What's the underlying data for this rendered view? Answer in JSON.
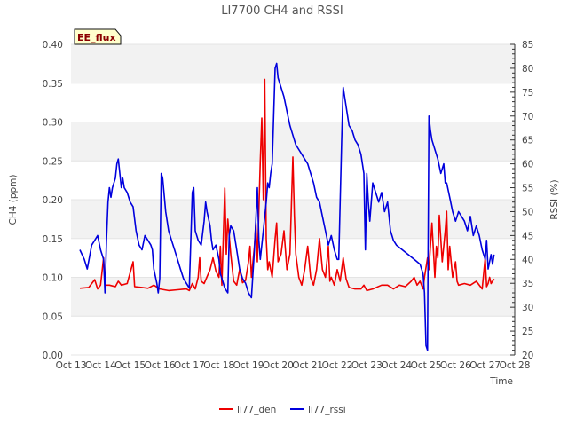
{
  "chart_data": {
    "type": "line",
    "title": "LI7700 CH4 and RSSI",
    "badge": "EE_flux",
    "xlabel": "Time",
    "ylabel_left": "CH4 (ppm)",
    "ylabel_right": "RSSI (%)",
    "x_range": [
      13,
      28
    ],
    "y_left_range": [
      0.0,
      0.4
    ],
    "y_right_range": [
      20,
      85
    ],
    "x_ticks": [
      "Oct 13",
      "Oct 14",
      "Oct 15",
      "Oct 16",
      "Oct 17",
      "Oct 18",
      "Oct 19",
      "Oct 20",
      "Oct 21",
      "Oct 22",
      "Oct 23",
      "Oct 24",
      "Oct 25",
      "Oct 26",
      "Oct 27",
      "Oct 28"
    ],
    "y_left_ticks": [
      "0.00",
      "0.05",
      "0.10",
      "0.15",
      "0.20",
      "0.25",
      "0.30",
      "0.35",
      "0.40"
    ],
    "y_right_ticks": [
      "20",
      "25",
      "30",
      "35",
      "40",
      "45",
      "50",
      "55",
      "60",
      "65",
      "70",
      "75",
      "80",
      "85"
    ],
    "series": [
      {
        "name": "li77_den",
        "axis": "left",
        "color": "#ee0000",
        "points": [
          [
            13.3,
            0.086
          ],
          [
            13.6,
            0.087
          ],
          [
            13.8,
            0.097
          ],
          [
            13.9,
            0.085
          ],
          [
            14.0,
            0.09
          ],
          [
            14.1,
            0.125
          ],
          [
            14.15,
            0.09
          ],
          [
            14.3,
            0.09
          ],
          [
            14.5,
            0.088
          ],
          [
            14.6,
            0.095
          ],
          [
            14.7,
            0.09
          ],
          [
            14.9,
            0.092
          ],
          [
            15.1,
            0.12
          ],
          [
            15.15,
            0.088
          ],
          [
            15.4,
            0.087
          ],
          [
            15.6,
            0.086
          ],
          [
            15.8,
            0.09
          ],
          [
            16.0,
            0.085
          ],
          [
            16.3,
            0.083
          ],
          [
            16.6,
            0.084
          ],
          [
            16.9,
            0.085
          ],
          [
            17.0,
            0.083
          ],
          [
            17.1,
            0.092
          ],
          [
            17.2,
            0.085
          ],
          [
            17.3,
            0.1
          ],
          [
            17.35,
            0.125
          ],
          [
            17.4,
            0.095
          ],
          [
            17.5,
            0.092
          ],
          [
            17.7,
            0.11
          ],
          [
            17.8,
            0.125
          ],
          [
            17.9,
            0.108
          ],
          [
            18.0,
            0.1
          ],
          [
            18.05,
            0.14
          ],
          [
            18.1,
            0.09
          ],
          [
            18.2,
            0.215
          ],
          [
            18.25,
            0.13
          ],
          [
            18.3,
            0.175
          ],
          [
            18.4,
            0.13
          ],
          [
            18.5,
            0.095
          ],
          [
            18.6,
            0.09
          ],
          [
            18.7,
            0.11
          ],
          [
            18.8,
            0.093
          ],
          [
            18.9,
            0.096
          ],
          [
            19.0,
            0.12
          ],
          [
            19.05,
            0.14
          ],
          [
            19.1,
            0.1
          ],
          [
            19.2,
            0.14
          ],
          [
            19.25,
            0.17
          ],
          [
            19.3,
            0.12
          ],
          [
            19.4,
            0.25
          ],
          [
            19.45,
            0.305
          ],
          [
            19.5,
            0.2
          ],
          [
            19.55,
            0.355
          ],
          [
            19.6,
            0.15
          ],
          [
            19.65,
            0.11
          ],
          [
            19.7,
            0.12
          ],
          [
            19.8,
            0.1
          ],
          [
            19.9,
            0.15
          ],
          [
            19.95,
            0.17
          ],
          [
            20.0,
            0.12
          ],
          [
            20.1,
            0.13
          ],
          [
            20.2,
            0.16
          ],
          [
            20.3,
            0.11
          ],
          [
            20.4,
            0.13
          ],
          [
            20.5,
            0.255
          ],
          [
            20.55,
            0.18
          ],
          [
            20.6,
            0.13
          ],
          [
            20.7,
            0.1
          ],
          [
            20.8,
            0.09
          ],
          [
            20.9,
            0.11
          ],
          [
            21.0,
            0.14
          ],
          [
            21.1,
            0.1
          ],
          [
            21.2,
            0.09
          ],
          [
            21.3,
            0.11
          ],
          [
            21.4,
            0.15
          ],
          [
            21.5,
            0.11
          ],
          [
            21.6,
            0.1
          ],
          [
            21.7,
            0.14
          ],
          [
            21.75,
            0.095
          ],
          [
            21.8,
            0.1
          ],
          [
            21.9,
            0.09
          ],
          [
            22.0,
            0.11
          ],
          [
            22.1,
            0.095
          ],
          [
            22.2,
            0.125
          ],
          [
            22.3,
            0.098
          ],
          [
            22.4,
            0.087
          ],
          [
            22.6,
            0.085
          ],
          [
            22.8,
            0.085
          ],
          [
            22.9,
            0.09
          ],
          [
            23.0,
            0.083
          ],
          [
            23.2,
            0.085
          ],
          [
            23.5,
            0.09
          ],
          [
            23.7,
            0.09
          ],
          [
            23.9,
            0.085
          ],
          [
            24.1,
            0.09
          ],
          [
            24.3,
            0.088
          ],
          [
            24.5,
            0.095
          ],
          [
            24.6,
            0.1
          ],
          [
            24.7,
            0.09
          ],
          [
            24.8,
            0.095
          ],
          [
            24.9,
            0.085
          ],
          [
            24.95,
            0.1
          ],
          [
            25.05,
            0.125
          ],
          [
            25.1,
            0.11
          ],
          [
            25.2,
            0.17
          ],
          [
            25.3,
            0.1
          ],
          [
            25.35,
            0.14
          ],
          [
            25.4,
            0.125
          ],
          [
            25.45,
            0.18
          ],
          [
            25.55,
            0.12
          ],
          [
            25.65,
            0.16
          ],
          [
            25.7,
            0.185
          ],
          [
            25.75,
            0.11
          ],
          [
            25.8,
            0.14
          ],
          [
            25.9,
            0.1
          ],
          [
            26.0,
            0.12
          ],
          [
            26.05,
            0.095
          ],
          [
            26.1,
            0.09
          ],
          [
            26.3,
            0.092
          ],
          [
            26.5,
            0.09
          ],
          [
            26.7,
            0.095
          ],
          [
            26.9,
            0.085
          ],
          [
            27.0,
            0.125
          ],
          [
            27.05,
            0.088
          ],
          [
            27.1,
            0.092
          ],
          [
            27.15,
            0.1
          ],
          [
            27.2,
            0.092
          ],
          [
            27.3,
            0.098
          ]
        ]
      },
      {
        "name": "li77_rssi",
        "axis": "right",
        "color": "#0000dd",
        "points": [
          [
            13.3,
            42
          ],
          [
            13.45,
            40
          ],
          [
            13.55,
            38
          ],
          [
            13.7,
            43
          ],
          [
            13.8,
            44
          ],
          [
            13.9,
            45
          ],
          [
            14.0,
            42
          ],
          [
            14.1,
            40
          ],
          [
            14.15,
            33
          ],
          [
            14.2,
            44
          ],
          [
            14.25,
            52
          ],
          [
            14.3,
            55
          ],
          [
            14.35,
            53
          ],
          [
            14.4,
            55
          ],
          [
            14.5,
            57
          ],
          [
            14.55,
            60
          ],
          [
            14.6,
            61
          ],
          [
            14.7,
            55
          ],
          [
            14.75,
            57
          ],
          [
            14.8,
            55
          ],
          [
            14.9,
            54
          ],
          [
            15.0,
            52
          ],
          [
            15.1,
            51
          ],
          [
            15.2,
            46
          ],
          [
            15.3,
            43
          ],
          [
            15.4,
            42
          ],
          [
            15.5,
            45
          ],
          [
            15.6,
            44
          ],
          [
            15.7,
            43
          ],
          [
            15.75,
            42
          ],
          [
            15.8,
            38
          ],
          [
            15.9,
            35
          ],
          [
            15.95,
            33
          ],
          [
            16.0,
            36
          ],
          [
            16.05,
            58
          ],
          [
            16.1,
            57
          ],
          [
            16.2,
            50
          ],
          [
            16.3,
            46
          ],
          [
            16.4,
            44
          ],
          [
            16.5,
            42
          ],
          [
            16.6,
            40
          ],
          [
            16.7,
            38
          ],
          [
            16.8,
            36
          ],
          [
            16.9,
            35
          ],
          [
            17.0,
            34
          ],
          [
            17.05,
            44
          ],
          [
            17.1,
            54
          ],
          [
            17.15,
            55
          ],
          [
            17.2,
            46
          ],
          [
            17.3,
            44
          ],
          [
            17.4,
            43
          ],
          [
            17.5,
            48
          ],
          [
            17.55,
            52
          ],
          [
            17.6,
            50
          ],
          [
            17.7,
            47
          ],
          [
            17.75,
            44
          ],
          [
            17.8,
            42
          ],
          [
            17.9,
            43
          ],
          [
            18.0,
            40
          ],
          [
            18.05,
            37
          ],
          [
            18.1,
            36
          ],
          [
            18.2,
            34
          ],
          [
            18.3,
            33
          ],
          [
            18.35,
            45
          ],
          [
            18.4,
            47
          ],
          [
            18.5,
            46
          ],
          [
            18.6,
            42
          ],
          [
            18.7,
            38
          ],
          [
            18.8,
            36
          ],
          [
            18.9,
            35
          ],
          [
            19.0,
            33
          ],
          [
            19.1,
            32
          ],
          [
            19.2,
            42
          ],
          [
            19.3,
            55
          ],
          [
            19.35,
            44
          ],
          [
            19.4,
            40
          ],
          [
            19.5,
            46
          ],
          [
            19.6,
            52
          ],
          [
            19.65,
            56
          ],
          [
            19.7,
            55
          ],
          [
            19.75,
            58
          ],
          [
            19.8,
            60
          ],
          [
            19.9,
            80
          ],
          [
            19.95,
            81
          ],
          [
            20.0,
            78
          ],
          [
            20.1,
            76
          ],
          [
            20.2,
            74
          ],
          [
            20.3,
            71
          ],
          [
            20.4,
            68
          ],
          [
            20.5,
            66
          ],
          [
            20.6,
            64
          ],
          [
            20.7,
            63
          ],
          [
            20.8,
            62
          ],
          [
            20.9,
            61
          ],
          [
            21.0,
            60
          ],
          [
            21.1,
            58
          ],
          [
            21.2,
            56
          ],
          [
            21.3,
            53
          ],
          [
            21.4,
            52
          ],
          [
            21.5,
            49
          ],
          [
            21.6,
            46
          ],
          [
            21.7,
            43
          ],
          [
            21.8,
            45
          ],
          [
            21.9,
            42
          ],
          [
            22.0,
            40
          ],
          [
            22.05,
            40
          ],
          [
            22.15,
            65
          ],
          [
            22.2,
            76
          ],
          [
            22.3,
            72
          ],
          [
            22.4,
            68
          ],
          [
            22.5,
            67
          ],
          [
            22.6,
            65
          ],
          [
            22.7,
            64
          ],
          [
            22.8,
            62
          ],
          [
            22.9,
            58
          ],
          [
            22.95,
            42
          ],
          [
            23.0,
            58
          ],
          [
            23.05,
            52
          ],
          [
            23.1,
            48
          ],
          [
            23.2,
            56
          ],
          [
            23.3,
            54
          ],
          [
            23.4,
            52
          ],
          [
            23.5,
            54
          ],
          [
            23.6,
            50
          ],
          [
            23.7,
            52
          ],
          [
            23.8,
            46
          ],
          [
            23.9,
            44
          ],
          [
            24.0,
            43
          ],
          [
            24.2,
            42
          ],
          [
            24.4,
            41
          ],
          [
            24.6,
            40
          ],
          [
            24.8,
            39
          ],
          [
            24.9,
            37
          ],
          [
            24.95,
            33
          ],
          [
            25.0,
            22
          ],
          [
            25.05,
            21
          ],
          [
            25.1,
            70
          ],
          [
            25.15,
            67
          ],
          [
            25.2,
            65
          ],
          [
            25.3,
            63
          ],
          [
            25.4,
            61
          ],
          [
            25.5,
            58
          ],
          [
            25.6,
            60
          ],
          [
            25.65,
            56
          ],
          [
            25.7,
            56
          ],
          [
            25.8,
            53
          ],
          [
            25.9,
            50
          ],
          [
            26.0,
            48
          ],
          [
            26.1,
            50
          ],
          [
            26.2,
            49
          ],
          [
            26.3,
            48
          ],
          [
            26.4,
            46
          ],
          [
            26.5,
            49
          ],
          [
            26.6,
            45
          ],
          [
            26.7,
            47
          ],
          [
            26.8,
            45
          ],
          [
            26.9,
            42
          ],
          [
            27.0,
            40
          ],
          [
            27.05,
            44
          ],
          [
            27.1,
            38
          ],
          [
            27.2,
            41
          ],
          [
            27.25,
            39
          ],
          [
            27.3,
            41
          ]
        ]
      }
    ],
    "legend": [
      "li77_den",
      "li77_rssi"
    ],
    "legend_position": "bottom-center",
    "grid": true
  }
}
